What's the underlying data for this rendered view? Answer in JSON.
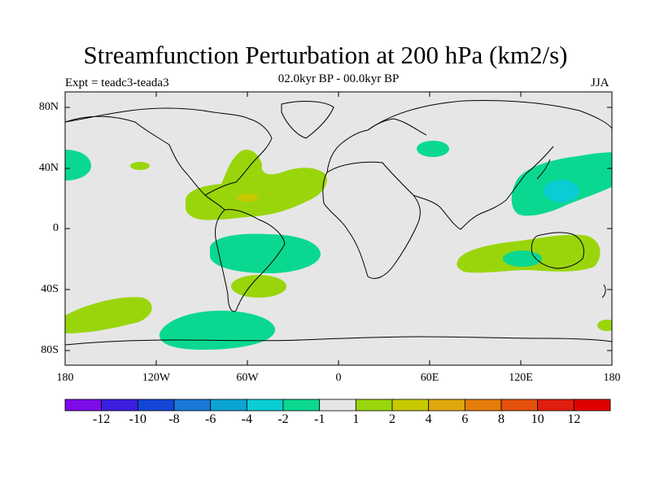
{
  "title": "Streamfunction Perturbation at 200 hPa (km2/s)",
  "experiment": "Expt = teadc3-teada3",
  "period": "02.0kyr BP - 00.0kyr BP",
  "season": "JJA",
  "lat_labels": [
    "80N",
    "40N",
    "0",
    "40S",
    "80S"
  ],
  "lon_labels": [
    "180",
    "120W",
    "60W",
    "0",
    "60E",
    "120E",
    "180"
  ],
  "colorbar": {
    "labels": [
      "-12",
      "-10",
      "-8",
      "-6",
      "-4",
      "-2",
      "-1",
      "1",
      "2",
      "4",
      "6",
      "8",
      "10",
      "12"
    ],
    "colors": [
      "#7d0be8",
      "#3c1ee0",
      "#1446d6",
      "#1a78d8",
      "#0ba4d3",
      "#0bccd3",
      "#0bd890",
      "#e6e6e6",
      "#9ad50c",
      "#c8c800",
      "#dfa70a",
      "#e47c0a",
      "#e4500c",
      "#e01e0e",
      "#e00000"
    ]
  },
  "map": {
    "background_color": "#e6e6e6",
    "regions": [
      {
        "name": "north-atlantic-positive",
        "level": "1 to 2",
        "color": "#9ad50c"
      },
      {
        "name": "caribbean-core",
        "level": "2 to 4",
        "color": "#c8c800"
      },
      {
        "name": "south-atlantic-negative",
        "level": "-2 to -1",
        "color": "#0bd890"
      },
      {
        "name": "argentina-positive",
        "level": "1 to 2",
        "color": "#9ad50c"
      },
      {
        "name": "south-pacific-positive",
        "level": "1 to 2",
        "color": "#9ad50c"
      },
      {
        "name": "southern-ocean-negative",
        "level": "-2 to -1",
        "color": "#0bd890"
      },
      {
        "name": "central-asia-negative",
        "level": "-2 to -1",
        "color": "#0bd890"
      },
      {
        "name": "western-pacific-negative",
        "level": "-2 to -1",
        "color": "#0bd890"
      },
      {
        "name": "western-pacific-core",
        "level": "-4 to -2",
        "color": "#0bccd3"
      },
      {
        "name": "australia-positive",
        "level": "1 to 2",
        "color": "#9ad50c"
      },
      {
        "name": "australia-negative",
        "level": "-2 to -1",
        "color": "#0bd890"
      },
      {
        "name": "north-pacific-negative",
        "level": "-2 to -1",
        "color": "#0bd890"
      }
    ]
  }
}
